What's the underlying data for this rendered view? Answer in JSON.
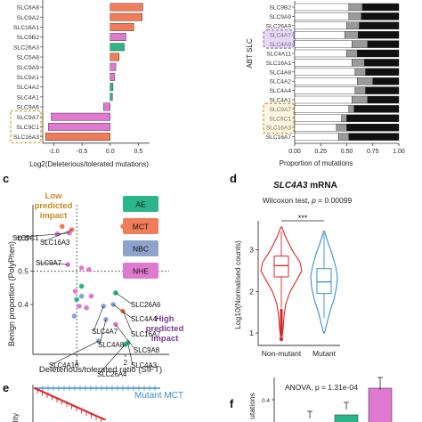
{
  "panel_a": {
    "genes": [
      "SLC6A8",
      "SLC9A2",
      "SLC16A1",
      "SLC9B2",
      "SLC26A3",
      "SLC5A8",
      "SLC9A9",
      "SLC9A1",
      "SLC4A2",
      "SLC4A1",
      "SLC9A6",
      "SLC9A7",
      "SLC9C1",
      "SLC16A3"
    ],
    "x_ticks": [
      "-1.0",
      "-0.5",
      "0.0",
      "0.5"
    ],
    "xlabel": "Log2(Deleterious/tolerated mutations)"
  },
  "panel_b": {
    "genes": [
      "SLC9B2",
      "SLC9A9",
      "SLC26A9",
      "SLC4A7",
      "SLC4A9",
      "SLC4A11",
      "SLC16A1",
      "SLC4A8",
      "SLC4A2",
      "SLC4A4",
      "SLC4A1",
      "SLC9A7",
      "SLC9C1",
      "SLC16A3",
      "SLC16A7"
    ],
    "axis_label": "ABT SLC",
    "x_ticks": [
      "0.00",
      "0.25",
      "0.50",
      "0.75",
      "1.00"
    ],
    "xlabel": "Proportion of mutations"
  },
  "panel_c": {
    "letter": "c",
    "low_label": [
      "Low",
      "predicted",
      "impact"
    ],
    "high_label": [
      "High",
      "predicted",
      "impact"
    ],
    "xlabel": "Deleterious/tolerated ratio (SIFT)",
    "ylabel": "Benign proportion (PolyPhen)",
    "y_ticks": [
      "0.6",
      "0.5",
      "0.4"
    ],
    "x_ticks": [
      "1",
      "2"
    ],
    "legend": [
      "AE",
      "MCT",
      "NBC",
      "NHE"
    ],
    "labels": [
      "SLC9C1",
      "SLC16A3",
      "SLC9A7",
      "SLC26A6",
      "SLC4A4",
      "SLC4A7",
      "SLC16A7",
      "SLC4A8",
      "SLC9A8",
      "SLC4A3",
      "SLC4A10",
      "SLC26A4"
    ]
  },
  "panel_d": {
    "letter": "d",
    "title_gene": "SLC4A3",
    "title_rest": " mRNA",
    "stat_prefix": "Wilcoxon test, ",
    "stat_p": "p",
    "stat_value": " = 0.00099",
    "sig": "***",
    "ylabel": "Log10(Normalised counts)",
    "y_ticks": [
      "3",
      "2",
      "1"
    ],
    "groups": [
      "Non-mutant",
      "Mutant"
    ]
  },
  "panel_e": {
    "letter": "e",
    "legend": "Mutant MCT",
    "ylabel_fragment": "ility"
  },
  "panel_f": {
    "letter": "f",
    "stat_text": "ANOVA, p = 1.31e-04",
    "ytick": "0.4",
    "ylabel_fragment": "utations"
  },
  "colors": {
    "AE": "#2bb58a",
    "MCT": "#f07d57",
    "NBC": "#8ea2cc",
    "NHE": "#e07ad0",
    "nonmutant": "#d62728",
    "mutant": "#3a8fc9",
    "highlight": "#c8a03a",
    "low": "#c38a1d",
    "high": "#7b3a96"
  },
  "chart_data": [
    {
      "panel": "a",
      "type": "bar",
      "orientation": "horizontal",
      "categories": [
        "SLC6A8",
        "SLC9A2",
        "SLC16A1",
        "SLC9B2",
        "SLC26A3",
        "SLC5A8",
        "SLC9A9",
        "SLC9A1",
        "SLC4A2",
        "SLC4A1",
        "SLC9A6",
        "SLC9A7",
        "SLC9C1",
        "SLC16A3"
      ],
      "values": [
        0.58,
        0.57,
        0.42,
        0.28,
        0.25,
        0.16,
        0.1,
        0.08,
        0.05,
        0.04,
        -0.12,
        -1.05,
        -1.1,
        -1.15
      ],
      "families": [
        "MCT",
        "MCT",
        "MCT",
        "NHE",
        "AE",
        "MCT",
        "NHE",
        "NHE",
        "AE",
        "AE",
        "NHE",
        "NHE",
        "NHE",
        "MCT"
      ],
      "xlim": [
        -1.2,
        0.7
      ],
      "xlabel": "Log2(Deleterious/tolerated mutations)"
    },
    {
      "panel": "b",
      "type": "bar",
      "orientation": "horizontal",
      "stacked": true,
      "categories": [
        "SLC9B2",
        "SLC9A9",
        "SLC26A9",
        "SLC4A7",
        "SLC4A9",
        "SLC4A11",
        "SLC16A1",
        "SLC4A8",
        "SLC4A2",
        "SLC4A4",
        "SLC4A1",
        "SLC9A7",
        "SLC9C1",
        "SLC16A3",
        "SLC16A7"
      ],
      "series": [
        {
          "values": [
            0.52,
            0.52,
            0.5,
            0.48,
            0.55,
            0.5,
            0.55,
            0.58,
            0.6,
            0.58,
            0.55,
            0.52,
            0.45,
            0.4,
            0.42
          ]
        },
        {
          "values": [
            0.13,
            0.12,
            0.12,
            0.13,
            0.15,
            0.1,
            0.12,
            0.1,
            0.15,
            0.1,
            0.15,
            0.05,
            0.05,
            0.1,
            0.1
          ]
        },
        {
          "values": [
            0.35,
            0.36,
            0.38,
            0.39,
            0.3,
            0.4,
            0.33,
            0.32,
            0.25,
            0.32,
            0.3,
            0.43,
            0.5,
            0.5,
            0.48
          ]
        }
      ],
      "xlim": [
        0,
        1
      ],
      "xlabel": "Proportion of mutations"
    },
    {
      "panel": "c",
      "type": "scatter",
      "xlabel": "Deleterious/tolerated ratio (SIFT)",
      "ylabel": "Benign proportion (PolyPhen)",
      "xlim": [
        0.1,
        2.9
      ],
      "ylim": [
        0.25,
        0.7
      ],
      "reference_lines": {
        "x": 1.0,
        "y": 0.5
      },
      "points": [
        {
          "label": "SLC9C1",
          "family": "NHE",
          "x": 0.85,
          "y": 0.615
        },
        {
          "label": "SLC16A3",
          "family": "MCT",
          "x": 0.9,
          "y": 0.625
        },
        {
          "label": "SLC9A7",
          "family": "NHE",
          "x": 0.82,
          "y": 0.52
        },
        {
          "label": "",
          "family": "MCT",
          "x": 0.7,
          "y": 0.635
        },
        {
          "label": "",
          "family": "NHE",
          "x": 0.6,
          "y": 0.612
        },
        {
          "label": "",
          "family": "MCT",
          "x": 1.95,
          "y": 0.635
        },
        {
          "label": "",
          "family": "NHE",
          "x": 1.1,
          "y": 0.51
        },
        {
          "label": "",
          "family": "NHE",
          "x": 1.25,
          "y": 0.505
        },
        {
          "label": "",
          "family": "AE",
          "x": 1.1,
          "y": 0.455
        },
        {
          "label": "",
          "family": "NHE",
          "x": 0.97,
          "y": 0.44
        },
        {
          "label": "",
          "family": "AE",
          "x": 1.0,
          "y": 0.415
        },
        {
          "label": "",
          "family": "NBC",
          "x": 1.1,
          "y": 0.425
        },
        {
          "label": "",
          "family": "NHE",
          "x": 1.3,
          "y": 0.425
        },
        {
          "label": "",
          "family": "NHE",
          "x": 1.05,
          "y": 0.395
        },
        {
          "label": "",
          "family": "NHE",
          "x": 1.2,
          "y": 0.39
        },
        {
          "label": "",
          "family": "NBC",
          "x": 0.95,
          "y": 0.365
        },
        {
          "label": "SLC26A6",
          "family": "AE",
          "x": 1.8,
          "y": 0.435
        },
        {
          "label": "SLC4A4",
          "family": "NBC",
          "x": 1.75,
          "y": 0.4
        },
        {
          "label": "SLC4A7",
          "family": "NBC",
          "x": 1.55,
          "y": 0.395
        },
        {
          "label": "SLC16A7",
          "family": "MCT",
          "x": 1.95,
          "y": 0.38
        },
        {
          "label": "SLC4A8",
          "family": "NBC",
          "x": 1.6,
          "y": 0.355
        },
        {
          "label": "SLC9A8",
          "family": "NHE",
          "x": 1.8,
          "y": 0.34
        },
        {
          "label": "SLC4A3",
          "family": "AE",
          "x": 2.05,
          "y": 0.285
        },
        {
          "label": "SLC4A10",
          "family": "NBC",
          "x": 1.45,
          "y": 0.29
        },
        {
          "label": "SLC26A4",
          "family": "AE",
          "x": 2.0,
          "y": 0.28
        }
      ]
    },
    {
      "panel": "d",
      "type": "violin",
      "title": "SLC4A3 mRNA",
      "ylabel": "Log10(Normalised counts)",
      "ylim": [
        0.7,
        3.7
      ],
      "groups": [
        {
          "name": "Non-mutant",
          "color": "#d62728",
          "q1": 2.35,
          "median": 2.62,
          "q3": 2.85,
          "whisker_low": 1.6,
          "whisker_high": 3.45,
          "min": 0.85,
          "max": 3.55
        },
        {
          "name": "Mutant",
          "color": "#3a8fc9",
          "q1": 1.95,
          "median": 2.23,
          "q3": 2.55,
          "whisker_low": 1.35,
          "whisker_high": 3.4,
          "min": 1.0,
          "max": 3.45
        }
      ],
      "test": "Wilcoxon test, p = 0.00099"
    },
    {
      "panel": "e",
      "type": "line",
      "series": [
        {
          "name": "Mutant MCT",
          "color": "#3a8fc9"
        }
      ]
    },
    {
      "panel": "f",
      "type": "bar",
      "test": "ANOVA, p = 1.31e-04",
      "series": [
        {
          "values": [
            0.3,
            0.33,
            0.45
          ]
        }
      ]
    }
  ]
}
